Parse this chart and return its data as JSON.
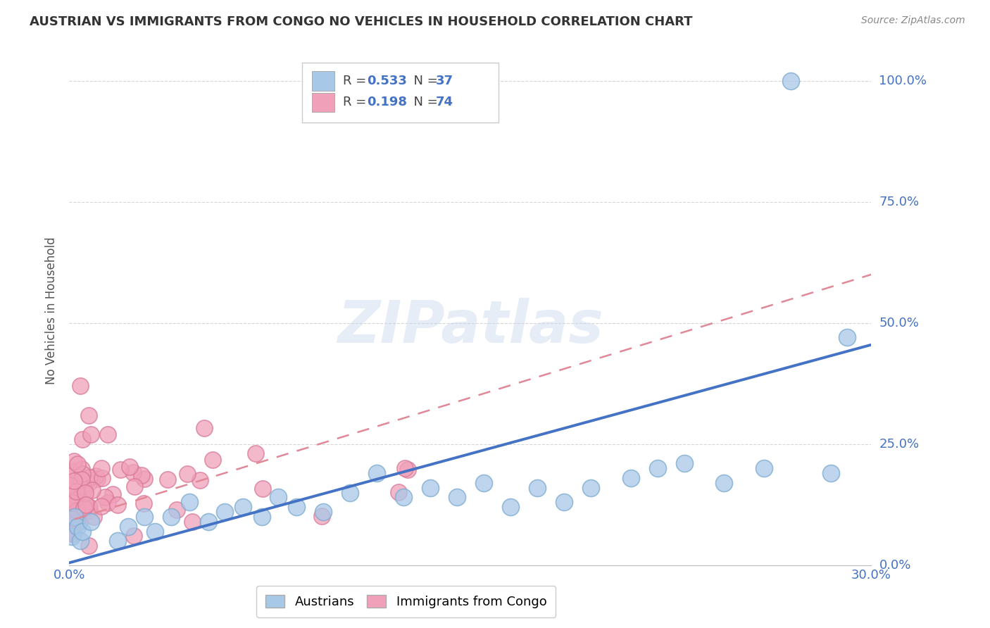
{
  "title": "AUSTRIAN VS IMMIGRANTS FROM CONGO NO VEHICLES IN HOUSEHOLD CORRELATION CHART",
  "source": "Source: ZipAtlas.com",
  "ylabel": "No Vehicles in Household",
  "xlim": [
    0.0,
    0.3
  ],
  "ylim": [
    0.0,
    1.05
  ],
  "xtick_positions": [
    0.0,
    0.3
  ],
  "xtick_labels": [
    "0.0%",
    "30.0%"
  ],
  "ytick_values": [
    0.0,
    0.25,
    0.5,
    0.75,
    1.0
  ],
  "ytick_labels": [
    "0.0%",
    "25.0%",
    "50.0%",
    "75.0%",
    "100.0%"
  ],
  "legend_r_blue": "0.533",
  "legend_n_blue": "37",
  "legend_r_pink": "0.198",
  "legend_n_pink": "74",
  "legend_label_blue": "Austrians",
  "legend_label_pink": "Immigrants from Congo",
  "blue_color": "#A8C8E8",
  "pink_color": "#F0A0B8",
  "blue_edge_color": "#7AAAD0",
  "pink_edge_color": "#D87898",
  "blue_line_color": "#4472C4",
  "pink_line_color": "#E08898",
  "watermark": "ZIPatlas",
  "blue_trend_x": [
    0.0,
    0.3
  ],
  "blue_trend_y": [
    0.005,
    0.455
  ],
  "pink_trend_x": [
    0.002,
    0.3
  ],
  "pink_trend_y": [
    0.095,
    0.6
  ],
  "background_color": "#ffffff",
  "grid_color": "#cccccc",
  "tick_color": "#4472C4",
  "title_color": "#333333",
  "source_color": "#888888",
  "ylabel_color": "#555555"
}
